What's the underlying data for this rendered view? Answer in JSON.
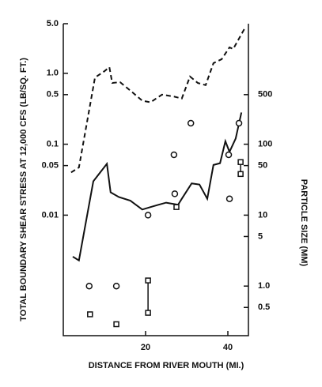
{
  "chart_data": {
    "type": "line",
    "xlabel": "DISTANCE FROM RIVER MOUTH (MI.)",
    "ylabel": "TOTAL BOUNDARY SHEAR STRESS AT 12,000 CFS (LB/SQ. FT.)",
    "y2label": "PARTICLE SIZE (MM)",
    "xlim": [
      0,
      45
    ],
    "xticks": [
      20,
      40
    ],
    "ylim": [
      0.0002,
      5
    ],
    "ylog": true,
    "yticks": [
      0.01,
      0.05,
      0.1,
      0.5,
      {
        "value": 1,
        "label": "1.0"
      },
      {
        "value": 5,
        "label": "5.0"
      }
    ],
    "y2lim": [
      0.2,
      5000
    ],
    "y2log": true,
    "y2ticks": [
      0.5,
      {
        "value": 1,
        "label": "1.0"
      },
      5,
      10,
      50,
      100,
      500
    ],
    "series": [
      {
        "type": "line",
        "style": "dashed",
        "color": "#111",
        "axis": "y",
        "x": [
          1.9,
          3.8,
          7.7,
          10.0,
          11.2,
          11.9,
          13.8,
          16.3,
          19.2,
          21.2,
          24.0,
          26.9,
          28.8,
          30.8,
          32.7,
          34.6,
          36.5,
          38.5,
          40.4,
          41.3,
          44.2
        ],
        "values": [
          0.04,
          0.047,
          0.87,
          1.07,
          1.22,
          0.73,
          0.75,
          0.57,
          0.41,
          0.39,
          0.5,
          0.47,
          0.44,
          0.9,
          0.73,
          0.68,
          1.39,
          1.58,
          2.32,
          2.2,
          4.4
        ]
      },
      {
        "type": "line",
        "style": "solid",
        "color": "#111",
        "axis": "y",
        "x": [
          2.3,
          3.8,
          7.3,
          10.6,
          11.5,
          13.5,
          16.3,
          19.2,
          21.2,
          23.1,
          25.0,
          27.9,
          28.8,
          31.2,
          33.1,
          35.0,
          36.5,
          38.1,
          39.4,
          40.4,
          41.9,
          43.3
        ],
        "values": [
          0.0026,
          0.0023,
          0.03,
          0.053,
          0.021,
          0.018,
          0.016,
          0.012,
          0.013,
          0.014,
          0.015,
          0.014,
          0.017,
          0.028,
          0.027,
          0.017,
          0.051,
          0.054,
          0.11,
          0.078,
          0.12,
          0.28
        ]
      },
      {
        "type": "scatter",
        "marker": "circle",
        "color": "#111",
        "axis": "y2",
        "x": [
          6.3,
          12.9,
          20.6,
          26.9,
          27.1,
          31.0,
          40.2,
          40.4,
          42.7
        ],
        "values": [
          1.0,
          1.0,
          10,
          71,
          20,
          198,
          71,
          17,
          198
        ]
      },
      {
        "type": "scatter",
        "marker": "square",
        "color": "#111",
        "axis": "y2",
        "x": [
          6.5,
          12.9,
          20.6,
          20.6,
          27.5,
          43.1,
          43.1
        ],
        "values": [
          0.4,
          0.29,
          1.2,
          0.42,
          13,
          56,
          38
        ]
      }
    ]
  }
}
